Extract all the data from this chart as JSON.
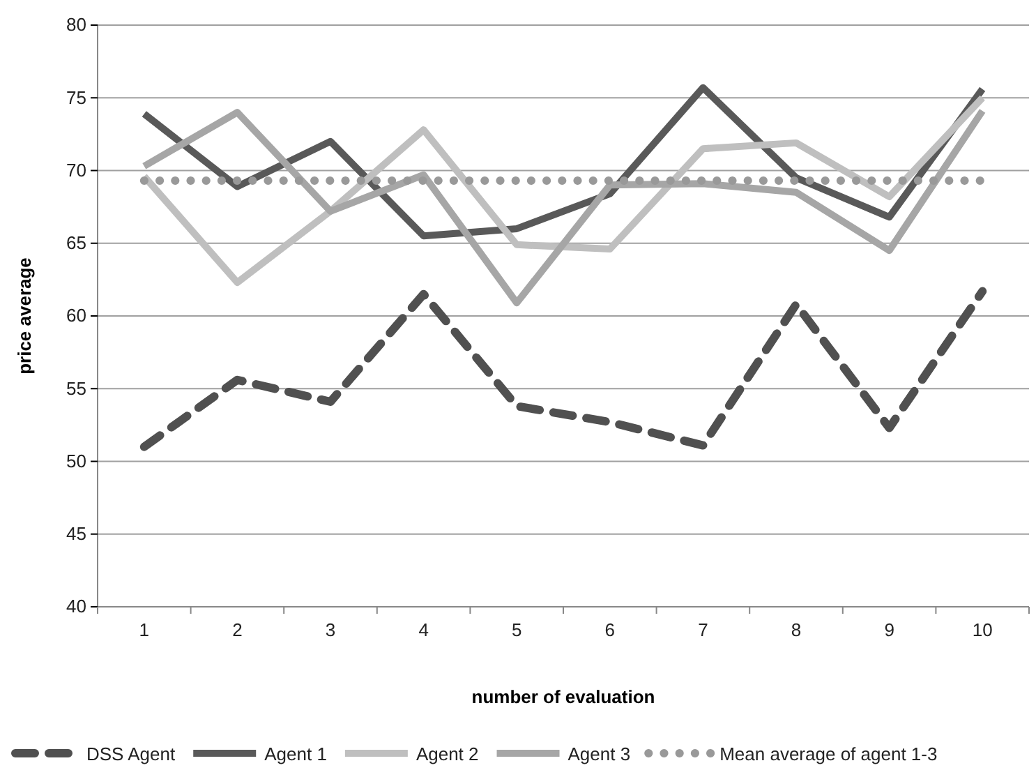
{
  "chart_data": {
    "type": "line",
    "xlabel": "number of evaluation",
    "ylabel": "price  average",
    "categories": [
      "1",
      "2",
      "3",
      "4",
      "5",
      "6",
      "7",
      "8",
      "9",
      "10"
    ],
    "series": [
      {
        "name": "DSS  Agent",
        "color": "#505050",
        "line_style": "dashed",
        "values": [
          51.0,
          55.6,
          54.1,
          61.5,
          53.8,
          52.7,
          51.1,
          60.8,
          52.3,
          61.7
        ]
      },
      {
        "name": "Agent  1",
        "color": "#595959",
        "line_style": "solid",
        "values": [
          73.9,
          68.9,
          72.0,
          65.5,
          66.0,
          68.4,
          75.7,
          69.5,
          66.8,
          75.6
        ]
      },
      {
        "name": "Agent  2",
        "color": "#bfbfbf",
        "line_style": "solid",
        "values": [
          69.6,
          62.3,
          67.2,
          72.8,
          64.9,
          64.6,
          71.5,
          71.9,
          68.2,
          75.0
        ]
      },
      {
        "name": "Agent  3",
        "color": "#a6a6a6",
        "line_style": "solid",
        "values": [
          70.3,
          74.0,
          67.2,
          69.7,
          60.9,
          69.0,
          69.1,
          68.5,
          64.5,
          74.1
        ]
      },
      {
        "name": "Mean average of agent 1-3",
        "color": "#999999",
        "line_style": "dotted",
        "values": [
          69.3,
          69.3,
          69.3,
          69.3,
          69.3,
          69.3,
          69.3,
          69.3,
          69.3,
          69.3
        ]
      }
    ],
    "ylim": [
      40,
      80
    ],
    "yticks": [
      40,
      45,
      50,
      55,
      60,
      65,
      70,
      75,
      80
    ],
    "grid": "y",
    "legend": "bottom",
    "marker": "none"
  }
}
